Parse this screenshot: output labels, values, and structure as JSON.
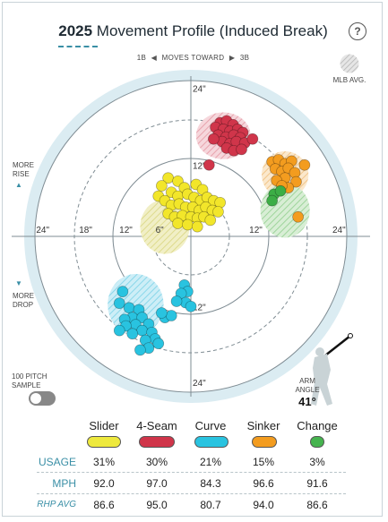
{
  "header": {
    "year": "2025",
    "title": "Movement Profile (Induced Break)",
    "help_icon": "?"
  },
  "direction": {
    "left": "1B",
    "middle": "MOVES TOWARD",
    "right": "3B"
  },
  "legend": {
    "mlb_avg": "MLB AVG."
  },
  "side": {
    "more_rise_1": "MORE",
    "more_rise_2": "RISE",
    "more_drop_1": "MORE",
    "more_drop_2": "DROP",
    "sample_1": "100 PITCH",
    "sample_2": "SAMPLE",
    "arm_1": "ARM",
    "arm_2": "ANGLE",
    "arm_value": "41°"
  },
  "chart_data": {
    "type": "scatter",
    "xlabel": "",
    "ylabel": "",
    "xlim": [
      -30,
      30
    ],
    "ylim": [
      -30,
      30
    ],
    "ring_labels": [
      "6\"",
      "12\"",
      "18\"",
      "24\""
    ],
    "tick_labels": {
      "x": [
        "24\"",
        "18\"",
        "12\"",
        "6\"",
        "12\"",
        "24\""
      ],
      "y": [
        "24\"",
        "12\"",
        "12\"",
        "24\""
      ]
    },
    "mlb_avg": [
      {
        "pitch": "4-Seam",
        "x": 5,
        "y": 15.5,
        "rx": 4.2,
        "ry": 3.6
      },
      {
        "pitch": "Sinker",
        "x": 14.5,
        "y": 9.5,
        "rx": 3.6,
        "ry": 3.6
      },
      {
        "pitch": "Change",
        "x": 14.5,
        "y": 4,
        "rx": 3.8,
        "ry": 4.2
      },
      {
        "pitch": "Slider",
        "x": -4,
        "y": 1.5,
        "rx": 3.8,
        "ry": 4.2
      },
      {
        "pitch": "Curve",
        "x": -8.5,
        "y": -10.5,
        "rx": 4.3,
        "ry": 4.7
      }
    ],
    "series": [
      {
        "name": "4-Seam",
        "color": "#d0354a",
        "points": [
          [
            4.5,
            17.5
          ],
          [
            5.5,
            17.8
          ],
          [
            6.5,
            17.2
          ],
          [
            3.8,
            16.8
          ],
          [
            5,
            16.5
          ],
          [
            6,
            16.2
          ],
          [
            7.2,
            16.5
          ],
          [
            8,
            16
          ],
          [
            4.2,
            15.6
          ],
          [
            5.4,
            15.3
          ],
          [
            6.6,
            15.6
          ],
          [
            7.6,
            15.2
          ],
          [
            4.8,
            14.6
          ],
          [
            6,
            14.3
          ],
          [
            7,
            14.6
          ],
          [
            8.3,
            14.4
          ],
          [
            5.5,
            13.6
          ],
          [
            6.6,
            13.2
          ],
          [
            7.8,
            13.4
          ],
          [
            9.5,
            15
          ],
          [
            3.5,
            15
          ],
          [
            2.8,
            11
          ]
        ]
      },
      {
        "name": "Sinker",
        "color": "#f39c1f",
        "points": [
          [
            12.5,
            11.5
          ],
          [
            13.5,
            11.8
          ],
          [
            14.5,
            11.2
          ],
          [
            15.5,
            11.6
          ],
          [
            17.5,
            11
          ],
          [
            13,
            10.4
          ],
          [
            14,
            10
          ],
          [
            15,
            10.5
          ],
          [
            16,
            9.8
          ],
          [
            14.5,
            9
          ],
          [
            13.2,
            8.6
          ],
          [
            16.2,
            8.4
          ],
          [
            15,
            7.5
          ],
          [
            16.5,
            3
          ],
          [
            14,
            7.8
          ]
        ]
      },
      {
        "name": "Change",
        "color": "#3cae46",
        "points": [
          [
            12.8,
            6.5
          ],
          [
            13.8,
            7
          ],
          [
            12.5,
            5.5
          ]
        ]
      },
      {
        "name": "Slider",
        "color": "#f2e62a",
        "points": [
          [
            -3.5,
            9
          ],
          [
            -2,
            8.5
          ],
          [
            -4.5,
            7.8
          ],
          [
            -1,
            7.5
          ],
          [
            0.8,
            8
          ],
          [
            1.8,
            7.2
          ],
          [
            -3,
            6.8
          ],
          [
            -2,
            6.2
          ],
          [
            -0.5,
            6.5
          ],
          [
            0.5,
            6
          ],
          [
            1.5,
            5.5
          ],
          [
            2.5,
            6
          ],
          [
            3.5,
            5.5
          ],
          [
            4.5,
            5.2
          ],
          [
            -5,
            6.2
          ],
          [
            -4,
            5.5
          ],
          [
            -3,
            4.8
          ],
          [
            -1.8,
            5
          ],
          [
            -0.8,
            4.5
          ],
          [
            0.3,
            4.5
          ],
          [
            1.3,
            4
          ],
          [
            2.3,
            4.5
          ],
          [
            3.3,
            4
          ],
          [
            4.2,
            3.8
          ],
          [
            -3.5,
            3.5
          ],
          [
            -2.5,
            3
          ],
          [
            -1.3,
            3.2
          ],
          [
            0,
            3
          ],
          [
            1,
            2.8
          ],
          [
            2,
            3
          ],
          [
            3,
            2.5
          ],
          [
            -2,
            2
          ],
          [
            -0.5,
            1.8
          ],
          [
            1,
            1.5
          ]
        ]
      },
      {
        "name": "Curve",
        "color": "#29c3e0",
        "points": [
          [
            -1,
            -7.5
          ],
          [
            -0.5,
            -8.5
          ],
          [
            -1.5,
            -8.8
          ],
          [
            -0.8,
            -10.2
          ],
          [
            -2.2,
            -10
          ],
          [
            0,
            -10.8
          ],
          [
            -10.5,
            -8.5
          ],
          [
            -11,
            -10.3
          ],
          [
            -9.5,
            -11
          ],
          [
            -8,
            -11.3
          ],
          [
            -9,
            -12.5
          ],
          [
            -7.5,
            -12.5
          ],
          [
            -10.2,
            -12.8
          ],
          [
            -8.5,
            -13.6
          ],
          [
            -6.5,
            -13.5
          ],
          [
            -10,
            -13.8
          ],
          [
            -7.5,
            -14.5
          ],
          [
            -6,
            -14.8
          ],
          [
            -9,
            -15
          ],
          [
            -5.5,
            -15.8
          ],
          [
            -7,
            -16
          ],
          [
            -6.5,
            -17.2
          ],
          [
            -5,
            -16.5
          ],
          [
            -4,
            -12.5
          ],
          [
            -3,
            -12.2
          ],
          [
            -4.5,
            -11.8
          ],
          [
            -11,
            -14.5
          ],
          [
            -7.8,
            -17.5
          ]
        ]
      }
    ]
  },
  "table": {
    "pitches": [
      {
        "name": "Slider",
        "color": "#eee93d"
      },
      {
        "name": "4-Seam",
        "color": "#d0354a"
      },
      {
        "name": "Curve",
        "color": "#29c3e0"
      },
      {
        "name": "Sinker",
        "color": "#f39c1f"
      },
      {
        "name": "Change",
        "color": "#46b44f"
      }
    ],
    "rows": [
      {
        "label": "USAGE",
        "values": [
          "31%",
          "30%",
          "21%",
          "15%",
          "3%"
        ]
      },
      {
        "label": "MPH",
        "values": [
          "92.0",
          "97.0",
          "84.3",
          "96.6",
          "91.6"
        ]
      },
      {
        "label": "RHP AVG",
        "values": [
          "86.6",
          "95.0",
          "80.7",
          "94.0",
          "86.6"
        ]
      }
    ]
  }
}
